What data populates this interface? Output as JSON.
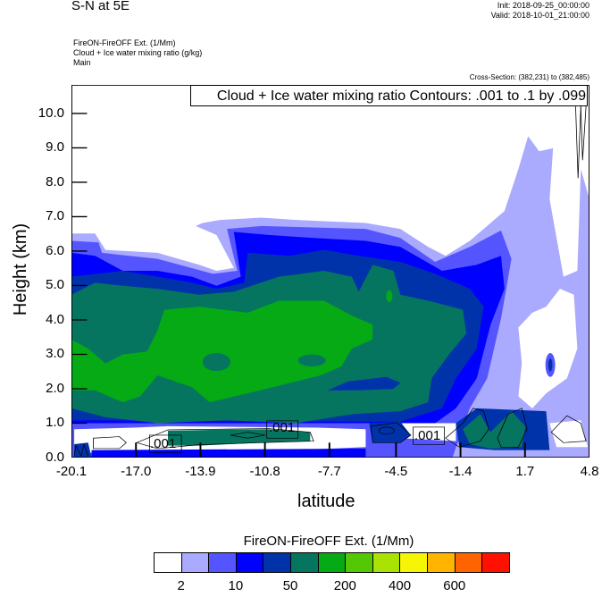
{
  "header": {
    "title": "S-N at 5E",
    "init": "Init: 2018-09-25_00:00:00",
    "valid": "Valid: 2018-10-01_21:00:00",
    "subtitles": [
      "FireON-FireOFF Ext.   (1/Mm)",
      "Cloud + Ice water mixing ratio   (g/kg)",
      "Main"
    ],
    "cross_section": "Cross-Section: (382,231) to (382,485)"
  },
  "chart_data": {
    "type": "contour",
    "title": "S-N at 5E",
    "xlabel": "latitude",
    "ylabel": "Height (km)",
    "xlim": [
      -20.1,
      4.8
    ],
    "ylim": [
      0,
      10.83
    ],
    "xticks": [
      -20.1,
      -17.0,
      -13.9,
      -10.8,
      -7.7,
      -4.5,
      -1.4,
      1.7,
      4.8
    ],
    "xtick_labels": [
      "-20.1",
      "-17.0",
      "-13.9",
      "-10.8",
      "-7.7",
      "-4.5",
      "-1.4",
      "1.7",
      "4.8"
    ],
    "yticks": [
      0,
      1,
      2,
      3,
      4,
      5,
      6,
      7,
      8,
      9,
      10
    ],
    "ytick_labels": [
      "0.0",
      "1.0",
      "2.0",
      "3.0",
      "4.0",
      "5.0",
      "6.0",
      "7.0",
      "8.0",
      "9.0",
      "10.0"
    ],
    "contour_legend": "Cloud + Ice water mixing ratio Contours: .001 to .1 by .099",
    "contour_labels": [
      ".001",
      ".001",
      ".001"
    ],
    "colorbar": {
      "title": "FireON-FireOFF Ext.  (1/Mm)",
      "colors": [
        "#ffffff",
        "#aaaaff",
        "#5555ff",
        "#0000ff",
        "#0033aa",
        "#057560",
        "#05aa15",
        "#55c805",
        "#aae205",
        "#f5f505",
        "#ffb400",
        "#ff6400",
        "#ff1000"
      ],
      "labels": [
        "2",
        "10",
        "50",
        "200",
        "400",
        "600"
      ]
    }
  }
}
